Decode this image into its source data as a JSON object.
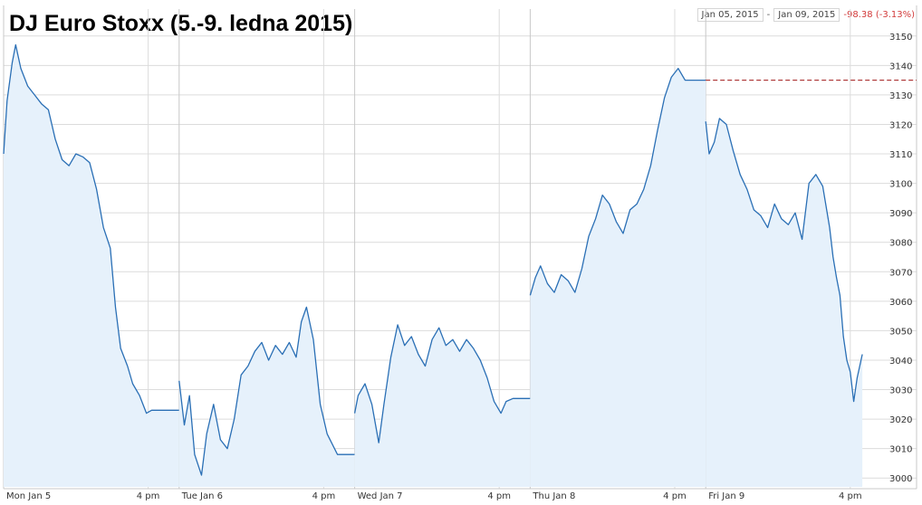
{
  "header": {
    "title": "DJ Euro Stoxx (5.-9. ledna 2015)",
    "range_start": "Jan 05, 2015",
    "range_sep": "-",
    "range_end": "Jan 09, 2015",
    "change": "-98.38 (-3.13%)"
  },
  "colors": {
    "line": "#2a6fb5",
    "fill": "#e6f1fb",
    "grid": "#dcdcdc",
    "reference_line": "#a01818",
    "change_negative": "#d23a3a"
  },
  "chart_data": {
    "type": "area",
    "title": "DJ Euro Stoxx (5.-9. ledna 2015)",
    "xlabel": "",
    "ylabel": "",
    "ylim": [
      2997,
      3153
    ],
    "y_ticks": [
      3000,
      3010,
      3020,
      3030,
      3040,
      3050,
      3060,
      3070,
      3080,
      3090,
      3100,
      3110,
      3120,
      3130,
      3140,
      3150
    ],
    "x_range": [
      "Jan 5 09:00",
      "Jan 9 17:30"
    ],
    "x_tick_labels": [
      {
        "label": "Mon Jan 5",
        "time": "Jan 5 09:00"
      },
      {
        "label": "4 pm",
        "time": "Jan 5 16:00"
      },
      {
        "label": "Tue Jan 6",
        "time": "Jan 6 09:00"
      },
      {
        "label": "4 pm",
        "time": "Jan 6 16:00"
      },
      {
        "label": "Wed Jan 7",
        "time": "Jan 7 09:00"
      },
      {
        "label": "4 pm",
        "time": "Jan 7 16:00"
      },
      {
        "label": "Thu Jan 8",
        "time": "Jan 8 09:00"
      },
      {
        "label": "4 pm",
        "time": "Jan 8 16:00"
      },
      {
        "label": "Fri Jan 9",
        "time": "Jan 9 09:00"
      },
      {
        "label": "4 pm",
        "time": "Jan 9 16:00"
      }
    ],
    "grid": true,
    "reference_line": {
      "value": 3135,
      "style": "dashed",
      "from": "Jan 9 09:00"
    },
    "series": [
      {
        "x": [
          "Jan 5 09:00",
          "Jan 5 09:10",
          "Jan 5 09:25",
          "Jan 5 09:35",
          "Jan 5 09:50",
          "Jan 5 10:10",
          "Jan 5 10:30",
          "Jan 5 10:50",
          "Jan 5 11:10",
          "Jan 5 11:30",
          "Jan 5 11:50",
          "Jan 5 12:10",
          "Jan 5 12:30",
          "Jan 5 12:50",
          "Jan 5 13:10",
          "Jan 5 13:30",
          "Jan 5 13:50",
          "Jan 5 14:10",
          "Jan 5 14:25",
          "Jan 5 14:40",
          "Jan 5 15:00",
          "Jan 5 15:15",
          "Jan 5 15:35",
          "Jan 5 15:55",
          "Jan 5 16:10",
          "Jan 5 17:30",
          "Jan 6 09:00",
          "Jan 6 09:15",
          "Jan 6 09:30",
          "Jan 6 09:45",
          "Jan 6 10:05",
          "Jan 6 10:20",
          "Jan 6 10:40",
          "Jan 6 11:00",
          "Jan 6 11:20",
          "Jan 6 11:40",
          "Jan 6 12:00",
          "Jan 6 12:20",
          "Jan 6 12:40",
          "Jan 6 13:00",
          "Jan 6 13:20",
          "Jan 6 13:40",
          "Jan 6 14:00",
          "Jan 6 14:20",
          "Jan 6 14:40",
          "Jan 6 14:55",
          "Jan 6 15:10",
          "Jan 6 15:30",
          "Jan 6 15:50",
          "Jan 6 16:10",
          "Jan 6 16:40",
          "Jan 6 17:30",
          "Jan 7 09:00",
          "Jan 7 09:10",
          "Jan 7 09:30",
          "Jan 7 09:50",
          "Jan 7 10:10",
          "Jan 7 10:25",
          "Jan 7 10:45",
          "Jan 7 11:05",
          "Jan 7 11:25",
          "Jan 7 11:45",
          "Jan 7 12:05",
          "Jan 7 12:25",
          "Jan 7 12:45",
          "Jan 7 13:05",
          "Jan 7 13:25",
          "Jan 7 13:45",
          "Jan 7 14:05",
          "Jan 7 14:25",
          "Jan 7 14:45",
          "Jan 7 15:05",
          "Jan 7 15:25",
          "Jan 7 15:45",
          "Jan 7 16:05",
          "Jan 7 16:20",
          "Jan 7 16:40",
          "Jan 7 17:30",
          "Jan 8 09:00",
          "Jan 8 09:15",
          "Jan 8 09:30",
          "Jan 8 09:50",
          "Jan 8 10:10",
          "Jan 8 10:30",
          "Jan 8 10:50",
          "Jan 8 11:10",
          "Jan 8 11:30",
          "Jan 8 11:50",
          "Jan 8 12:10",
          "Jan 8 12:30",
          "Jan 8 12:50",
          "Jan 8 13:10",
          "Jan 8 13:30",
          "Jan 8 13:50",
          "Jan 8 14:10",
          "Jan 8 14:30",
          "Jan 8 14:50",
          "Jan 8 15:10",
          "Jan 8 15:30",
          "Jan 8 15:50",
          "Jan 8 16:10",
          "Jan 8 16:30",
          "Jan 8 17:30",
          "Jan 9 09:00",
          "Jan 9 09:10",
          "Jan 9 09:25",
          "Jan 9 09:40",
          "Jan 9 10:00",
          "Jan 9 10:20",
          "Jan 9 10:40",
          "Jan 9 11:00",
          "Jan 9 11:20",
          "Jan 9 11:40",
          "Jan 9 12:00",
          "Jan 9 12:20",
          "Jan 9 12:40",
          "Jan 9 13:00",
          "Jan 9 13:20",
          "Jan 9 13:40",
          "Jan 9 14:00",
          "Jan 9 14:20",
          "Jan 9 14:40",
          "Jan 9 15:00",
          "Jan 9 15:10",
          "Jan 9 15:20",
          "Jan 9 15:30",
          "Jan 9 15:40",
          "Jan 9 15:50",
          "Jan 9 16:00",
          "Jan 9 16:10",
          "Jan 9 16:20",
          "Jan 9 16:35"
        ],
        "values": [
          3110,
          3128,
          3141,
          3147,
          3139,
          3133,
          3130,
          3127,
          3125,
          3115,
          3108,
          3106,
          3110,
          3109,
          3107,
          3098,
          3085,
          3078,
          3058,
          3044,
          3038,
          3032,
          3028,
          3022,
          3023,
          3023,
          3033,
          3018,
          3028,
          3008,
          3001,
          3015,
          3025,
          3013,
          3010,
          3020,
          3035,
          3038,
          3043,
          3046,
          3040,
          3045,
          3042,
          3046,
          3041,
          3053,
          3058,
          3047,
          3025,
          3015,
          3008,
          3008,
          3022,
          3028,
          3032,
          3025,
          3012,
          3025,
          3041,
          3052,
          3045,
          3048,
          3042,
          3038,
          3047,
          3051,
          3045,
          3047,
          3043,
          3047,
          3044,
          3040,
          3034,
          3026,
          3022,
          3026,
          3027,
          3027,
          3062,
          3068,
          3072,
          3066,
          3063,
          3069,
          3067,
          3063,
          3071,
          3082,
          3088,
          3096,
          3093,
          3087,
          3083,
          3091,
          3093,
          3098,
          3106,
          3118,
          3129,
          3136,
          3139,
          3135,
          3135,
          3121,
          3110,
          3114,
          3122,
          3120,
          3111,
          3103,
          3098,
          3091,
          3089,
          3085,
          3093,
          3088,
          3086,
          3090,
          3081,
          3100,
          3103,
          3099,
          3085,
          3075,
          3068,
          3062,
          3048,
          3040,
          3036,
          3026,
          3034,
          3042
        ]
      }
    ]
  }
}
